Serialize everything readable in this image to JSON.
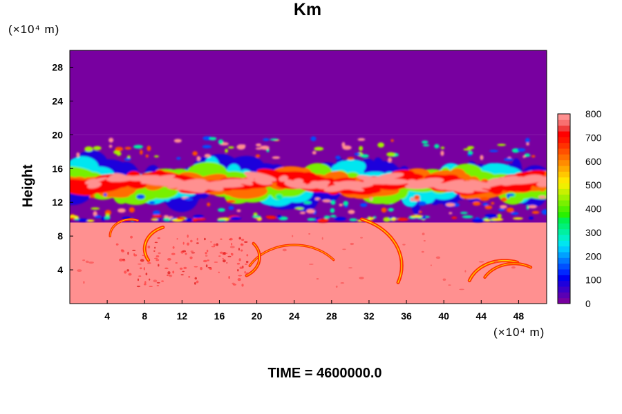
{
  "chart_data": {
    "type": "heatmap",
    "title": "Km",
    "xlabel": "",
    "ylabel": "Height",
    "x_unit": "(×10⁴ m)",
    "y_unit": "(×10⁴ m)",
    "footer": "TIME = 4600000.0",
    "xlim": [
      0,
      51
    ],
    "ylim": [
      0,
      30
    ],
    "x_ticks": [
      4,
      8,
      12,
      16,
      20,
      24,
      28,
      32,
      36,
      40,
      44,
      48
    ],
    "y_ticks": [
      4,
      8,
      12,
      16,
      20,
      24,
      28
    ],
    "colorbar": {
      "min": 0,
      "max": 800,
      "ticks": [
        0,
        100,
        200,
        300,
        400,
        500,
        600,
        700,
        800
      ],
      "colors": [
        "#7800a0",
        "#5a00b4",
        "#3c00c8",
        "#1e00dc",
        "#0000f0",
        "#0028ff",
        "#0050ff",
        "#0078ff",
        "#00a0ff",
        "#00c8ff",
        "#00e6f0",
        "#00f0c8",
        "#00f0a0",
        "#00f078",
        "#00f050",
        "#28f000",
        "#50f000",
        "#78f000",
        "#a0f000",
        "#c8f000",
        "#f0f000",
        "#ffe600",
        "#ffc800",
        "#ffaa00",
        "#ff8c00",
        "#ff6e00",
        "#ff5000",
        "#ff3200",
        "#ff1400",
        "#ff0000",
        "#f03c3c",
        "#f87070",
        "#ff9090"
      ]
    },
    "regions": [
      {
        "name": "upper layer",
        "y_range": [
          20,
          30
        ],
        "value": 0
      },
      {
        "name": "turbulent band",
        "y_range": [
          9.6,
          20
        ],
        "value_range": [
          0,
          800
        ]
      },
      {
        "name": "lower layer",
        "y_range": [
          0,
          9.6
        ],
        "value": 800
      }
    ]
  }
}
